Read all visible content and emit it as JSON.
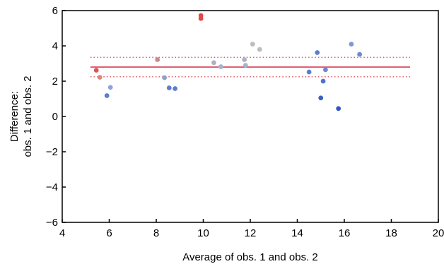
{
  "chart_data": {
    "type": "scatter",
    "xlabel": "Average of obs. 1 and obs. 2",
    "ylabel_lines": [
      "Difference:",
      "obs. 1 and obs. 2"
    ],
    "xlim": [
      4,
      20
    ],
    "ylim": [
      -6,
      6
    ],
    "xticks": [
      4,
      6,
      8,
      10,
      12,
      14,
      16,
      18,
      20
    ],
    "yticks": [
      6,
      4,
      2,
      0,
      -2,
      -4,
      -6
    ],
    "grid": false,
    "legend": "none",
    "mean_line": {
      "y": 2.8,
      "x_range": [
        5.2,
        18.8
      ],
      "color": "#e06070"
    },
    "limit_lines": [
      {
        "y": 3.35,
        "x_range": [
          5.2,
          18.8
        ],
        "color": "#e06070"
      },
      {
        "y": 2.25,
        "x_range": [
          5.2,
          18.8
        ],
        "color": "#e06070"
      }
    ],
    "points": [
      {
        "x": 5.45,
        "y": 2.62,
        "color": "#e05252"
      },
      {
        "x": 5.6,
        "y": 2.22,
        "color": "#d98880"
      },
      {
        "x": 5.9,
        "y": 1.18,
        "color": "#5b7fcf"
      },
      {
        "x": 6.05,
        "y": 1.65,
        "color": "#8ea4d6"
      },
      {
        "x": 8.05,
        "y": 3.22,
        "color": "#c98c88"
      },
      {
        "x": 8.35,
        "y": 2.2,
        "color": "#8fa0cf"
      },
      {
        "x": 8.55,
        "y": 1.62,
        "color": "#5b7fcf"
      },
      {
        "x": 8.8,
        "y": 1.58,
        "color": "#5b7fcf"
      },
      {
        "x": 9.9,
        "y": 5.72,
        "color": "#e04848"
      },
      {
        "x": 9.9,
        "y": 5.55,
        "color": "#e04848"
      },
      {
        "x": 10.45,
        "y": 3.05,
        "color": "#a8b2cc"
      },
      {
        "x": 10.75,
        "y": 2.82,
        "color": "#a8b2cc"
      },
      {
        "x": 11.75,
        "y": 3.22,
        "color": "#a8b2cc"
      },
      {
        "x": 11.8,
        "y": 2.9,
        "color": "#a8b2cc"
      },
      {
        "x": 12.1,
        "y": 4.1,
        "color": "#bdbdbd"
      },
      {
        "x": 12.4,
        "y": 3.8,
        "color": "#bdbdbd"
      },
      {
        "x": 14.5,
        "y": 2.52,
        "color": "#5b7fcf"
      },
      {
        "x": 14.85,
        "y": 3.62,
        "color": "#5b7fcf"
      },
      {
        "x": 15.0,
        "y": 1.05,
        "color": "#3a5fc4"
      },
      {
        "x": 15.1,
        "y": 2.0,
        "color": "#4f73cc"
      },
      {
        "x": 15.2,
        "y": 2.65,
        "color": "#6b88d1"
      },
      {
        "x": 15.75,
        "y": 0.45,
        "color": "#3357c2"
      },
      {
        "x": 16.3,
        "y": 4.1,
        "color": "#7e98d6"
      },
      {
        "x": 16.65,
        "y": 3.52,
        "color": "#6b88d1"
      }
    ]
  }
}
